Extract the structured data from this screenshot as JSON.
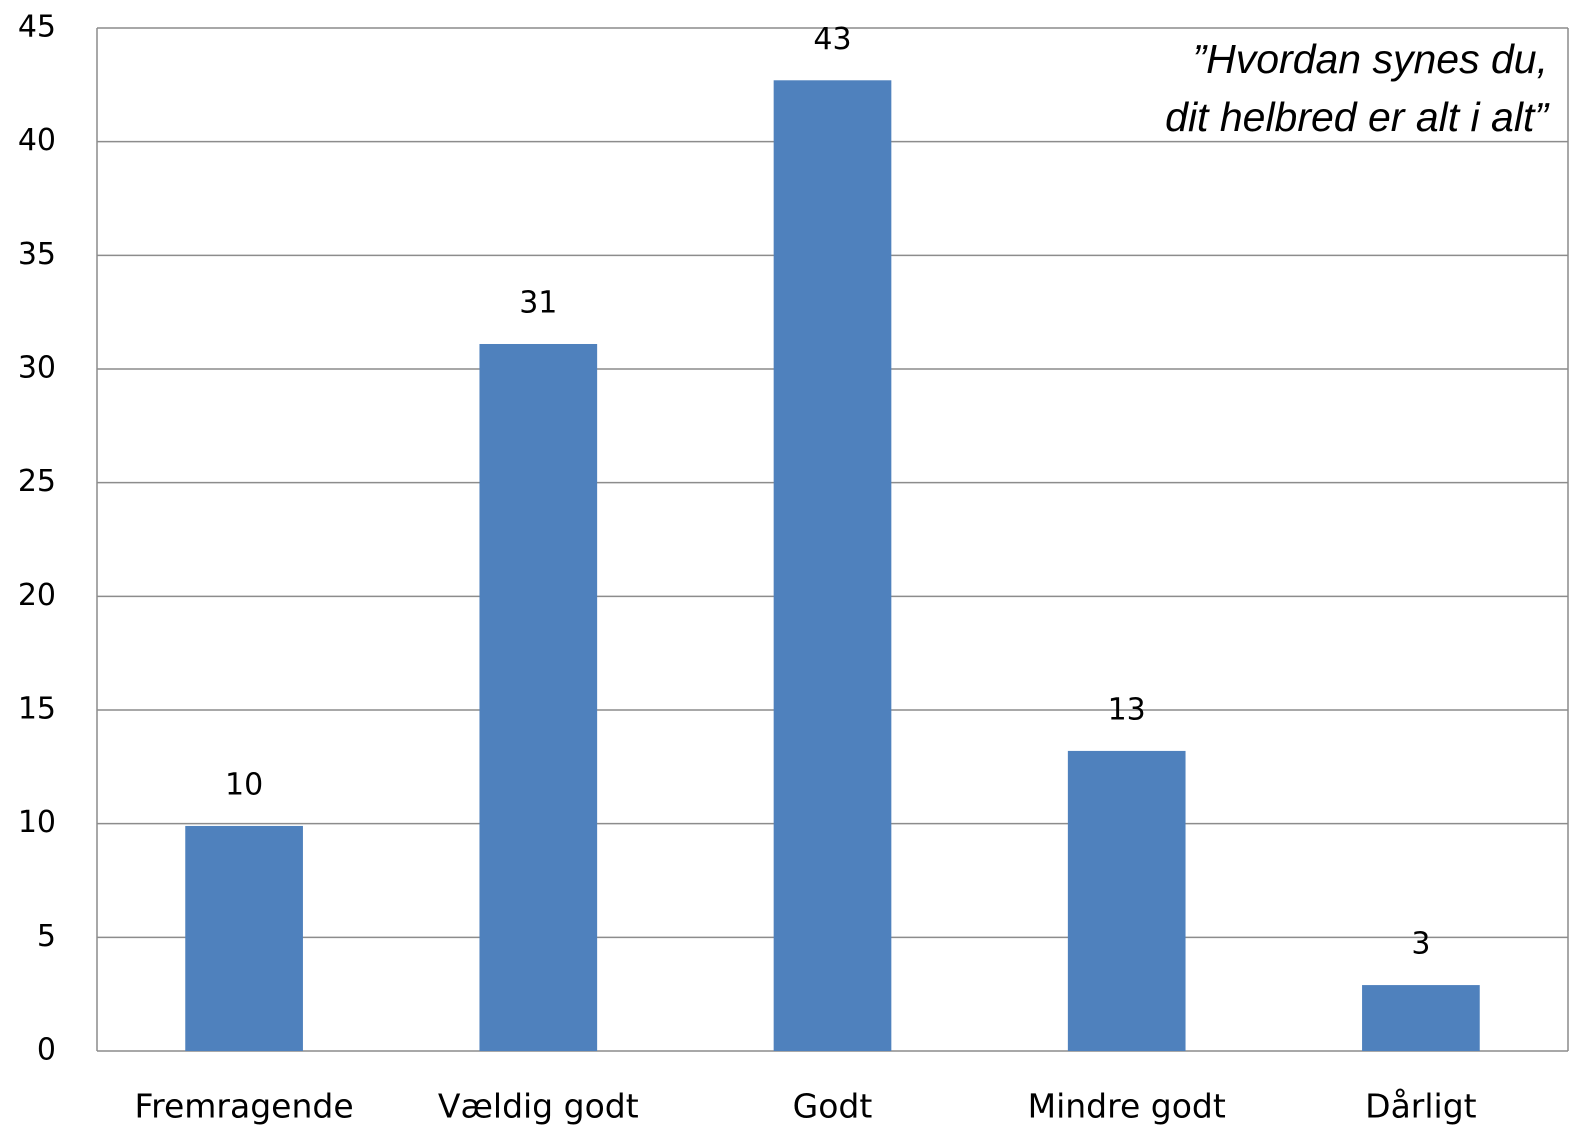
{
  "chart_data": {
    "type": "bar",
    "annotation": [
      "”Hvordan synes du,",
      "dit helbred er alt i alt”"
    ],
    "categories": [
      "Fremragende",
      "Vældig godt",
      "Godt",
      "Mindre godt",
      "Dårligt"
    ],
    "values": [
      9.9,
      31.1,
      42.7,
      13.2,
      2.9
    ],
    "value_labels": [
      "10",
      "31",
      "43",
      "13",
      "3"
    ],
    "color": "#4f81bd",
    "ylim": [
      0,
      45
    ],
    "yticks": [
      0,
      5,
      10,
      15,
      20,
      25,
      30,
      35,
      40,
      45
    ],
    "grid": true
  }
}
